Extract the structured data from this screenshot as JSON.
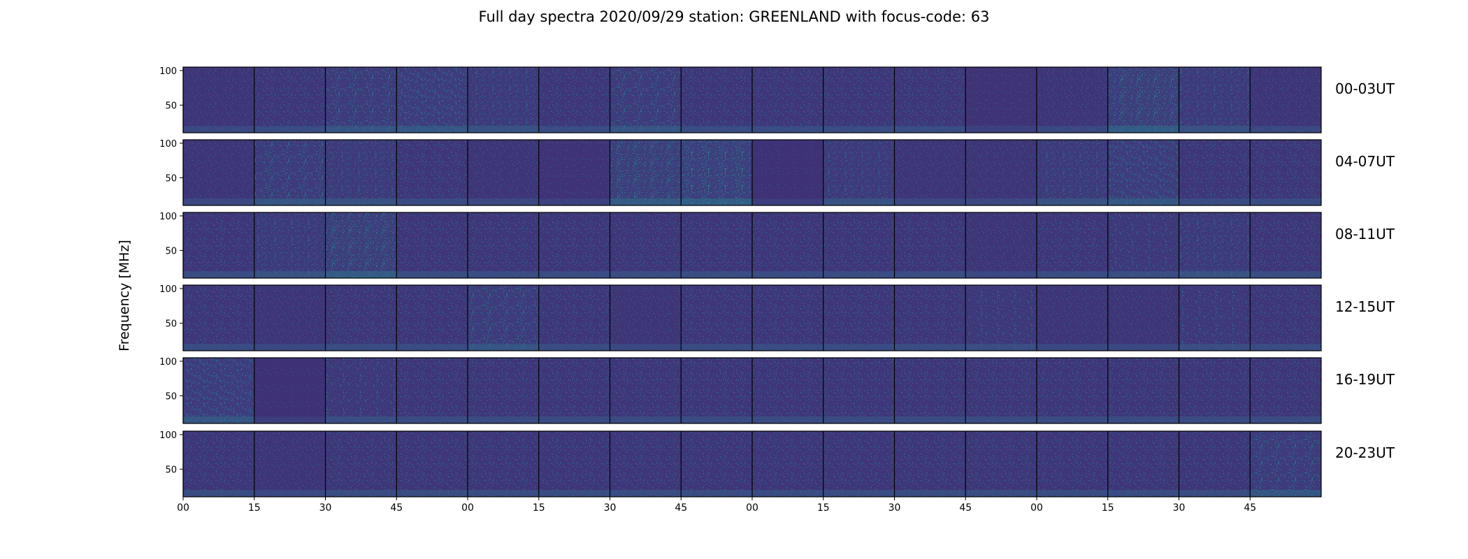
{
  "chart_data": {
    "type": "heatmap",
    "title": "Full day spectra 2020/09/29 station: GREENLAND with focus-code: 63",
    "ylabel": "Frequency [MHz]",
    "xlabel": "",
    "ylim": [
      10,
      105
    ],
    "yticks": [
      50,
      100
    ],
    "xtick_labels": [
      "00",
      "15",
      "30",
      "45",
      "00",
      "15",
      "30",
      "45",
      "00",
      "15",
      "30",
      "45",
      "00",
      "15",
      "30",
      "45"
    ],
    "rows": [
      {
        "label": "00-03UT",
        "intensity": [
          0.25,
          0.3,
          0.45,
          0.5,
          0.4,
          0.3,
          0.45,
          0.3,
          0.3,
          0.3,
          0.3,
          0.15,
          0.25,
          0.55,
          0.4,
          0.25
        ]
      },
      {
        "label": "04-07UT",
        "intensity": [
          0.25,
          0.45,
          0.4,
          0.3,
          0.25,
          0.15,
          0.55,
          0.6,
          0.1,
          0.4,
          0.25,
          0.25,
          0.4,
          0.5,
          0.3,
          0.3
        ]
      },
      {
        "label": "08-11UT",
        "intensity": [
          0.3,
          0.4,
          0.55,
          0.3,
          0.3,
          0.3,
          0.3,
          0.3,
          0.3,
          0.3,
          0.3,
          0.25,
          0.3,
          0.35,
          0.4,
          0.3
        ]
      },
      {
        "label": "12-15UT",
        "intensity": [
          0.3,
          0.25,
          0.3,
          0.3,
          0.45,
          0.3,
          0.25,
          0.3,
          0.3,
          0.3,
          0.3,
          0.35,
          0.25,
          0.25,
          0.35,
          0.3
        ]
      },
      {
        "label": "16-19UT",
        "intensity": [
          0.5,
          0.1,
          0.35,
          0.3,
          0.3,
          0.3,
          0.3,
          0.3,
          0.3,
          0.3,
          0.3,
          0.3,
          0.3,
          0.3,
          0.3,
          0.3
        ]
      },
      {
        "label": "20-23UT",
        "intensity": [
          0.3,
          0.25,
          0.3,
          0.3,
          0.3,
          0.3,
          0.3,
          0.3,
          0.3,
          0.3,
          0.3,
          0.3,
          0.3,
          0.3,
          0.3,
          0.45
        ]
      }
    ],
    "colormap": [
      "#440154",
      "#3b528b",
      "#21918c",
      "#5ec962",
      "#fde725"
    ],
    "grid": false
  }
}
